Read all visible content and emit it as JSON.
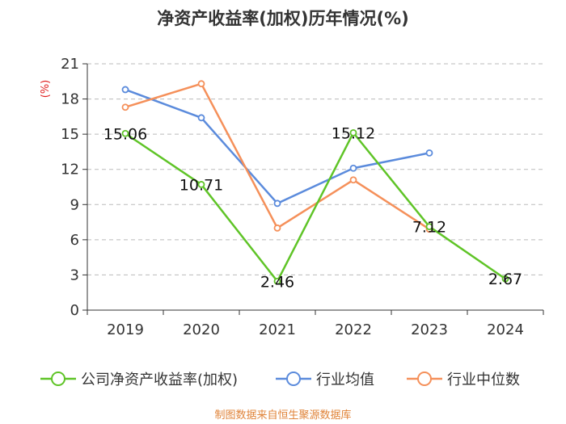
{
  "chart_data": {
    "type": "line",
    "title": "净资产收益率(加权)历年情况(%)",
    "ylabel": "(%)",
    "xlabel": "",
    "categories": [
      "2019",
      "2020",
      "2021",
      "2022",
      "2023",
      "2024"
    ],
    "ylim": [
      0,
      21
    ],
    "yticks": [
      0,
      3,
      6,
      9,
      12,
      15,
      18,
      21
    ],
    "grid": true,
    "legend_position": "bottom",
    "series": [
      {
        "name": "公司净资产收益率(加权)",
        "color": "#5fc427",
        "values": [
          15.06,
          10.71,
          2.46,
          15.12,
          7.12,
          2.67
        ],
        "labels": [
          "15.06",
          "10.71",
          "2.46",
          "15.12",
          "7.12",
          "2.67"
        ]
      },
      {
        "name": "行业均值",
        "color": "#5b8bdc",
        "values": [
          18.8,
          16.4,
          9.1,
          12.1,
          13.4,
          null
        ]
      },
      {
        "name": "行业中位数",
        "color": "#f5905a",
        "values": [
          17.3,
          19.3,
          7.0,
          11.1,
          6.9,
          null
        ]
      }
    ],
    "source": "制图数据来自恒生聚源数据库"
  }
}
